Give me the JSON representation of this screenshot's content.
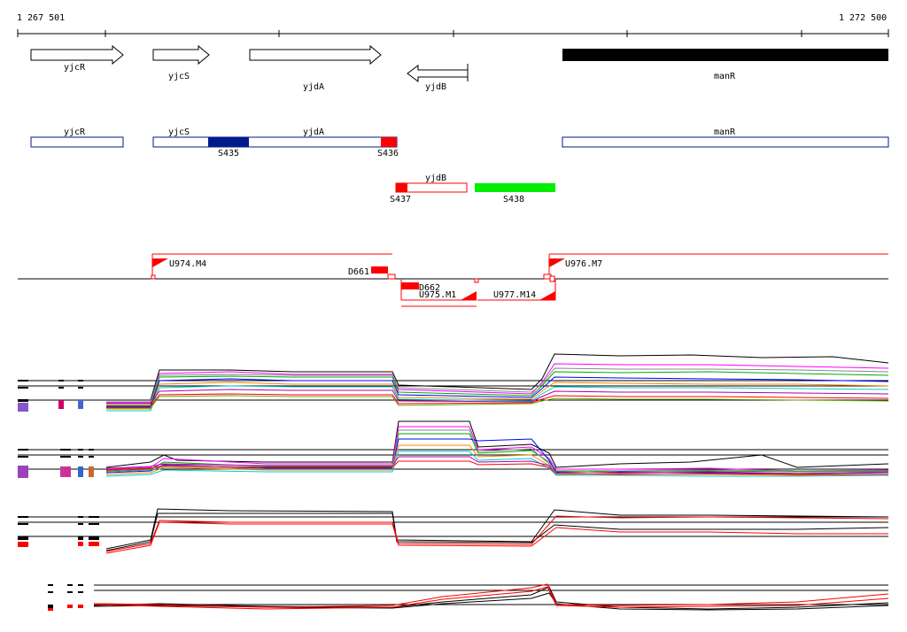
{
  "ruler": {
    "start_label": "1 267 501",
    "end_label": "1 272 500"
  },
  "genes": [
    {
      "name": "yjcR",
      "strand": "+"
    },
    {
      "name": "yjcS",
      "strand": "+"
    },
    {
      "name": "yjdA",
      "strand": "+"
    },
    {
      "name": "yjdB",
      "strand": "-"
    },
    {
      "name": "manR",
      "strand": "+"
    }
  ],
  "segments": {
    "track1_labels": [
      "yjcR",
      "yjcS",
      "yjdA",
      "manR"
    ],
    "track2_labels": [
      "yjdB"
    ],
    "blocks": [
      {
        "name": "S435",
        "color": "#001a8c"
      },
      {
        "name": "S436",
        "color": "#ff0000"
      },
      {
        "name": "S437",
        "color": "#ff0000"
      },
      {
        "name": "S438",
        "color": "#00ee00"
      }
    ]
  },
  "transcription_units": [
    {
      "name": "U974.M4",
      "strand": "+"
    },
    {
      "name": "U975.M1",
      "strand": "-"
    },
    {
      "name": "U976.M7",
      "strand": "+"
    },
    {
      "name": "U977.M14",
      "strand": "-"
    }
  ],
  "terminators": [
    {
      "name": "D661"
    },
    {
      "name": "D662"
    }
  ],
  "colors": {
    "gene_outline": "#000000",
    "segment_outline": "#001a8c",
    "tu": "#ff0000",
    "strong": "#ff0000"
  }
}
